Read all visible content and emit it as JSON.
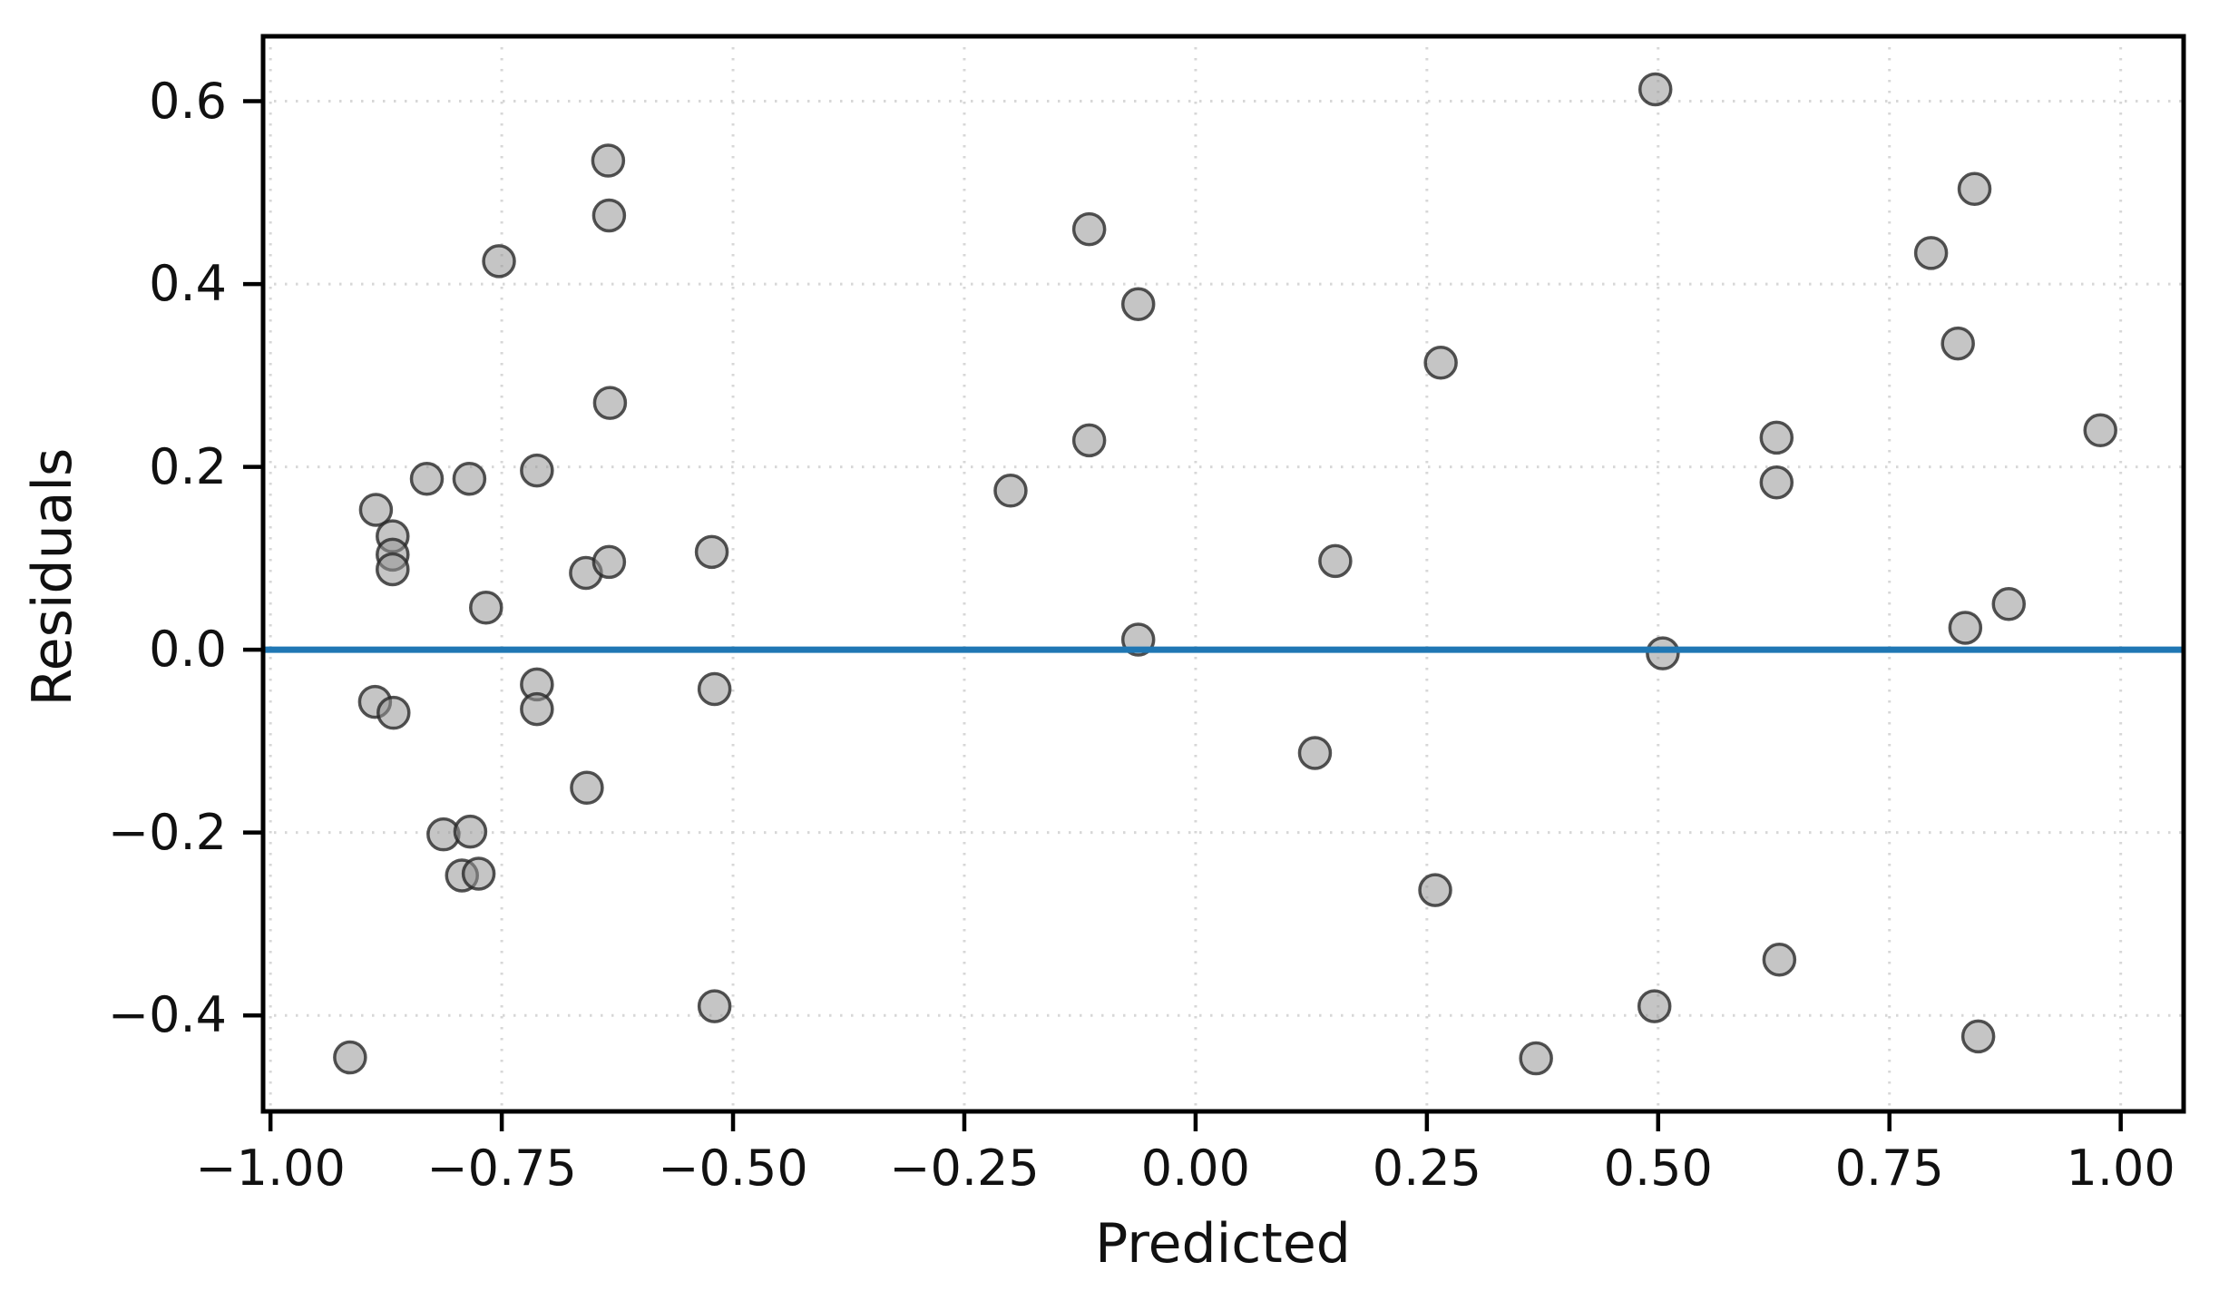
{
  "chart_data": {
    "type": "scatter",
    "title": "",
    "xlabel": "Predicted",
    "ylabel": "Residuals",
    "xlim": [
      -1.008,
      1.068
    ],
    "ylim": [
      -0.505,
      0.671
    ],
    "grid": {
      "style": "dotted",
      "color": "#d7d7d7",
      "visible": true
    },
    "legend_position": "none",
    "x_ticks": {
      "values": [
        -1.0,
        -0.75,
        -0.5,
        -0.25,
        0.0,
        0.25,
        0.5,
        0.75,
        1.0
      ],
      "labels": [
        "−1.00",
        "−0.75",
        "−0.50",
        "−0.25",
        "0.00",
        "0.25",
        "0.50",
        "0.75",
        "1.00"
      ]
    },
    "y_ticks": {
      "values": [
        -0.4,
        -0.2,
        0.0,
        0.2,
        0.4,
        0.6
      ],
      "labels": [
        "−0.4",
        "−0.2",
        "0.0",
        "0.2",
        "0.4",
        "0.6"
      ]
    },
    "reference_line": {
      "y": 0.0,
      "color": "#1f77b4",
      "width": 7
    },
    "series": [
      {
        "name": "residuals",
        "marker": "circle",
        "marker_face": "#969696",
        "marker_face_alpha": 0.55,
        "marker_edge": "#282828",
        "marker_edge_alpha": 0.8,
        "points": [
          [
            -0.914,
            -0.446
          ],
          [
            -0.887,
            -0.057
          ],
          [
            -0.886,
            0.153
          ],
          [
            -0.868,
            0.124
          ],
          [
            -0.868,
            0.104
          ],
          [
            -0.868,
            0.088
          ],
          [
            -0.867,
            -0.069
          ],
          [
            -0.831,
            0.187
          ],
          [
            -0.813,
            -0.202
          ],
          [
            -0.793,
            -0.247
          ],
          [
            -0.785,
            0.187
          ],
          [
            -0.784,
            -0.199
          ],
          [
            -0.775,
            -0.245
          ],
          [
            -0.767,
            0.046
          ],
          [
            -0.753,
            0.425
          ],
          [
            -0.712,
            0.196
          ],
          [
            -0.712,
            -0.038
          ],
          [
            -0.712,
            -0.065
          ],
          [
            -0.659,
            0.084
          ],
          [
            -0.658,
            -0.151
          ],
          [
            -0.635,
            0.535
          ],
          [
            -0.634,
            0.475
          ],
          [
            -0.633,
            0.27
          ],
          [
            -0.634,
            0.096
          ],
          [
            -0.523,
            0.107
          ],
          [
            -0.52,
            -0.043
          ],
          [
            -0.52,
            -0.39
          ],
          [
            -0.2,
            0.174
          ],
          [
            -0.115,
            0.46
          ],
          [
            -0.115,
            0.229
          ],
          [
            -0.062,
            0.378
          ],
          [
            -0.062,
            0.011
          ],
          [
            0.151,
            0.097
          ],
          [
            0.129,
            -0.113
          ],
          [
            0.265,
            0.314
          ],
          [
            0.259,
            -0.263
          ],
          [
            0.368,
            -0.447
          ],
          [
            0.497,
            0.613
          ],
          [
            0.505,
            -0.004
          ],
          [
            0.496,
            -0.39
          ],
          [
            0.628,
            0.232
          ],
          [
            0.628,
            0.183
          ],
          [
            0.631,
            -0.339
          ],
          [
            0.795,
            0.434
          ],
          [
            0.842,
            0.504
          ],
          [
            0.824,
            0.335
          ],
          [
            0.832,
            0.024
          ],
          [
            0.879,
            0.05
          ],
          [
            0.846,
            -0.423
          ],
          [
            0.978,
            0.24
          ]
        ]
      }
    ],
    "spine_color": "#000000",
    "background_color": "#ffffff"
  }
}
